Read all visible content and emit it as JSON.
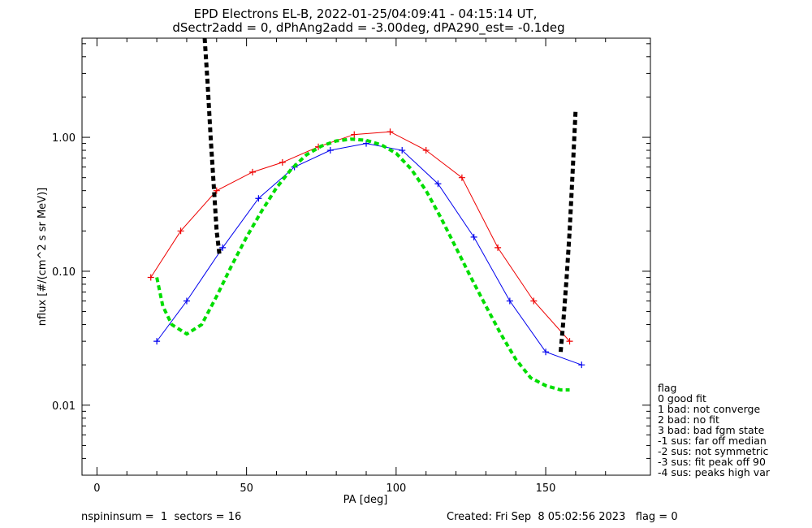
{
  "chart_data": {
    "type": "line",
    "title": "EPD Electrons EL-B, 2022-01-25/04:09:41 - 04:15:14 UT,",
    "subtitle": "dSectr2add = 0, dPhAng2add = -3.00deg, dPA290_est=  -0.1deg",
    "xlabel": "PA [deg]",
    "ylabel": "nflux [#/(cm^2 s sr MeV)]",
    "xlim": [
      -5,
      185
    ],
    "ylim": [
      0.003,
      5.5
    ],
    "yscale": "log",
    "x_ticks": [
      "0",
      "50",
      "100",
      "150"
    ],
    "x_tick_values": [
      0,
      50,
      100,
      150
    ],
    "y_ticks": [
      "0.01",
      "0.10",
      "1.00"
    ],
    "y_tick_values": [
      0.01,
      0.1,
      1.0
    ],
    "series_colors": {
      "red": "#ee0000",
      "blue": "#0000ee",
      "green": "#00dd00",
      "black": "#000000"
    },
    "series": [
      {
        "color": "red",
        "style": "solid-with-plus-markers",
        "x": [
          18,
          28,
          40,
          52,
          62,
          74,
          86,
          98,
          110,
          122,
          134,
          146,
          158
        ],
        "y": [
          0.09,
          0.2,
          0.4,
          0.55,
          0.65,
          0.85,
          1.05,
          1.1,
          0.8,
          0.5,
          0.15,
          0.06,
          0.03
        ]
      },
      {
        "color": "blue",
        "style": "solid-with-plus-markers",
        "x": [
          20,
          30,
          42,
          54,
          66,
          78,
          90,
          102,
          114,
          126,
          138,
          150,
          162
        ],
        "y": [
          0.03,
          0.06,
          0.15,
          0.35,
          0.6,
          0.8,
          0.9,
          0.8,
          0.45,
          0.18,
          0.06,
          0.025,
          0.02
        ]
      },
      {
        "color": "green",
        "style": "dashed-fit",
        "x": [
          20,
          22,
          25,
          30,
          35,
          40,
          45,
          50,
          55,
          60,
          65,
          70,
          75,
          80,
          85,
          90,
          95,
          100,
          105,
          110,
          115,
          120,
          125,
          130,
          135,
          140,
          145,
          150,
          155,
          158
        ],
        "y": [
          0.09,
          0.055,
          0.04,
          0.034,
          0.04,
          0.065,
          0.11,
          0.18,
          0.28,
          0.42,
          0.58,
          0.74,
          0.86,
          0.94,
          0.97,
          0.95,
          0.88,
          0.76,
          0.58,
          0.4,
          0.25,
          0.15,
          0.09,
          0.055,
          0.034,
          0.022,
          0.016,
          0.014,
          0.013,
          0.013
        ]
      },
      {
        "color": "black",
        "style": "dashed-model",
        "x": [
          36,
          37,
          38,
          39,
          40,
          41,
          155,
          156,
          157,
          158,
          159,
          160
        ],
        "y": [
          5.5,
          2.5,
          1.0,
          0.45,
          0.2,
          0.13,
          0.025,
          0.045,
          0.09,
          0.2,
          0.55,
          1.6
        ]
      }
    ],
    "legend": {
      "placement": "right-bottom",
      "title": "flag",
      "entries": [
        " 0 good fit",
        " 1 bad: not converge",
        " 2 bad: no fit",
        " 3 bad: bad fgm state",
        "-1 sus: far off median",
        "-2 sus: not symmetric",
        "-3 sus: fit peak off 90",
        "-4 sus: peaks high var"
      ]
    },
    "grid": false
  },
  "footer": {
    "left": "nspininsum =  1  sectors = 16",
    "right": "Created: Fri Sep  8 05:02:56 2023   flag = 0"
  }
}
